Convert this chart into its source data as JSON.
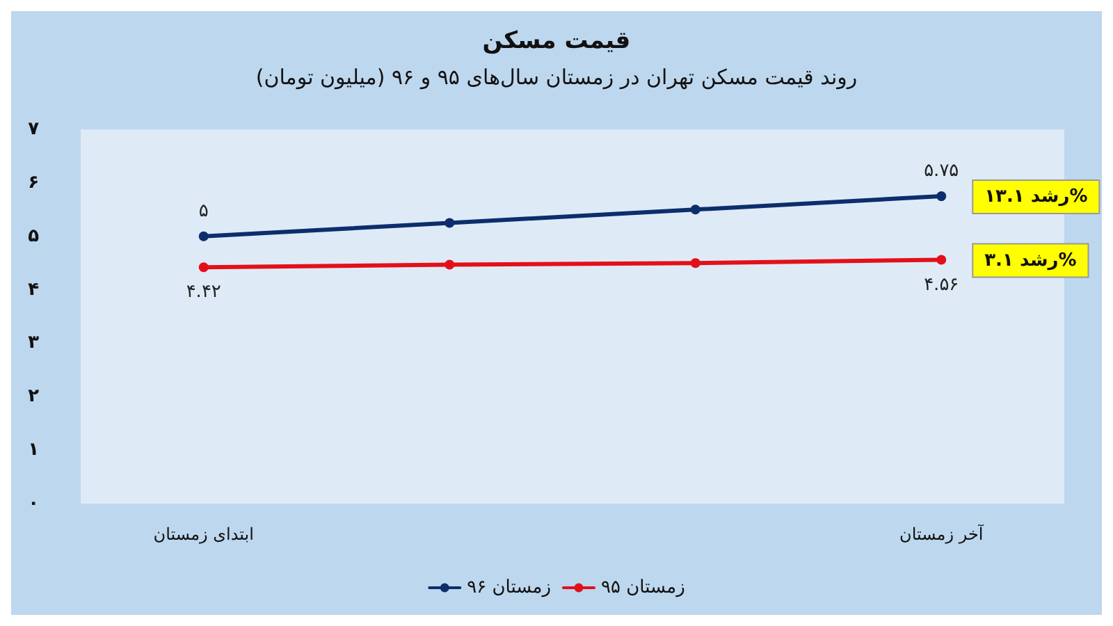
{
  "chart_data": {
    "type": "line",
    "title": "قیمت مسکن",
    "subtitle": "روند قیمت مسکن تهران در زمستان سال‌های ۹۵ و ۹۶ (میلیون تومان)",
    "categories": [
      "ابتدای زمستان",
      null,
      null,
      "آخر زمستان"
    ],
    "series": [
      {
        "name": "زمستان ۹۶",
        "color": "#0d2d6c",
        "values": [
          5,
          5.25,
          5.5,
          5.75
        ],
        "value_labels": [
          "۵",
          null,
          null,
          "۵.۷۵"
        ]
      },
      {
        "name": "زمستان ۹۵",
        "color": "#e3101a",
        "values": [
          4.42,
          4.47,
          4.5,
          4.56
        ],
        "value_labels": [
          "۴.۴۲",
          null,
          null,
          "۴.۵۶"
        ]
      }
    ],
    "ylim": [
      0,
      7
    ],
    "yticks": [
      {
        "value": 0,
        "label": "۰"
      },
      {
        "value": 1,
        "label": "۱"
      },
      {
        "value": 2,
        "label": "۲"
      },
      {
        "value": 3,
        "label": "۳"
      },
      {
        "value": 4,
        "label": "۴"
      },
      {
        "value": 5,
        "label": "۵"
      },
      {
        "value": 6,
        "label": "۶"
      },
      {
        "value": 7,
        "label": "۷"
      }
    ],
    "annotations": [
      {
        "text": "رشد ۱۳.۱%",
        "x": "آخر زمستان",
        "y": 5.75
      },
      {
        "text": "رشد ۳.۱%",
        "x": "آخر زمستان",
        "y": 4.56
      }
    ],
    "grid": false,
    "legend": "bottom",
    "marker": "circle",
    "line_style": "solid"
  }
}
